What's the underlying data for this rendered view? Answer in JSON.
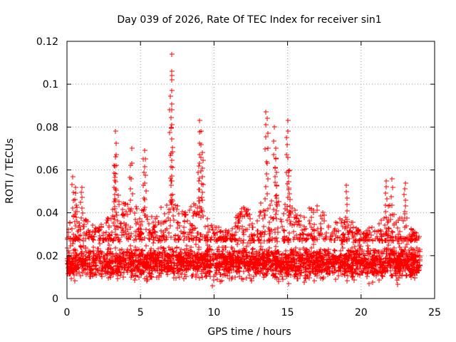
{
  "chart_data": {
    "type": "scatter",
    "title": "Day 039 of 2026, Rate Of TEC Index for receiver sin1",
    "xlabel": "GPS time / hours",
    "ylabel": "ROTI / TECUs",
    "xlim": [
      0,
      25
    ],
    "ylim": [
      0,
      0.12
    ],
    "x_ticks": [
      0,
      5,
      10,
      15,
      20,
      25
    ],
    "x_tick_labels": [
      "0",
      "5",
      "10",
      "15",
      "20",
      "25"
    ],
    "y_ticks": [
      0,
      0.02,
      0.04,
      0.06,
      0.08,
      0.1,
      0.12
    ],
    "y_tick_labels": [
      "0",
      "0.02",
      "0.04",
      "0.06",
      "0.08",
      "0.1",
      "0.12"
    ],
    "grid": true,
    "marker": "+",
    "color": "#ff0000",
    "series": [
      {
        "name": "ROTI",
        "baseline_band": [
          0.007,
          0.027
        ],
        "x_range": [
          0,
          24
        ],
        "spikes": [
          {
            "x": 0.4,
            "y": 0.057
          },
          {
            "x": 0.6,
            "y": 0.052
          },
          {
            "x": 1.0,
            "y": 0.052
          },
          {
            "x": 3.3,
            "y": 0.078
          },
          {
            "x": 3.3,
            "y": 0.066
          },
          {
            "x": 3.2,
            "y": 0.062
          },
          {
            "x": 4.4,
            "y": 0.07
          },
          {
            "x": 4.3,
            "y": 0.062
          },
          {
            "x": 5.3,
            "y": 0.069
          },
          {
            "x": 5.2,
            "y": 0.065
          },
          {
            "x": 7.1,
            "y": 0.114
          },
          {
            "x": 7.1,
            "y": 0.106
          },
          {
            "x": 7.1,
            "y": 0.102
          },
          {
            "x": 7.0,
            "y": 0.088
          },
          {
            "x": 7.1,
            "y": 0.081
          },
          {
            "x": 9.0,
            "y": 0.083
          },
          {
            "x": 9.1,
            "y": 0.078
          },
          {
            "x": 9.2,
            "y": 0.068
          },
          {
            "x": 9.0,
            "y": 0.063
          },
          {
            "x": 13.5,
            "y": 0.087
          },
          {
            "x": 13.6,
            "y": 0.084
          },
          {
            "x": 14.1,
            "y": 0.08
          },
          {
            "x": 14.2,
            "y": 0.07
          },
          {
            "x": 14.2,
            "y": 0.065
          },
          {
            "x": 15.0,
            "y": 0.083
          },
          {
            "x": 15.0,
            "y": 0.078
          },
          {
            "x": 15.1,
            "y": 0.06
          },
          {
            "x": 19.0,
            "y": 0.053
          },
          {
            "x": 21.7,
            "y": 0.055
          },
          {
            "x": 22.1,
            "y": 0.056
          },
          {
            "x": 23.0,
            "y": 0.054
          }
        ],
        "envelope": [
          {
            "x": 0.0,
            "y": 0.03
          },
          {
            "x": 0.5,
            "y": 0.045
          },
          {
            "x": 1.0,
            "y": 0.04
          },
          {
            "x": 2.0,
            "y": 0.033
          },
          {
            "x": 3.0,
            "y": 0.04
          },
          {
            "x": 3.5,
            "y": 0.05
          },
          {
            "x": 4.0,
            "y": 0.045
          },
          {
            "x": 5.0,
            "y": 0.043
          },
          {
            "x": 6.0,
            "y": 0.038
          },
          {
            "x": 7.0,
            "y": 0.05
          },
          {
            "x": 8.0,
            "y": 0.04
          },
          {
            "x": 9.0,
            "y": 0.048
          },
          {
            "x": 10.0,
            "y": 0.034
          },
          {
            "x": 11.0,
            "y": 0.032
          },
          {
            "x": 12.0,
            "y": 0.045
          },
          {
            "x": 13.0,
            "y": 0.046
          },
          {
            "x": 14.0,
            "y": 0.048
          },
          {
            "x": 15.0,
            "y": 0.045
          },
          {
            "x": 16.0,
            "y": 0.04
          },
          {
            "x": 17.0,
            "y": 0.045
          },
          {
            "x": 18.0,
            "y": 0.035
          },
          {
            "x": 19.0,
            "y": 0.04
          },
          {
            "x": 20.0,
            "y": 0.03
          },
          {
            "x": 21.0,
            "y": 0.035
          },
          {
            "x": 22.0,
            "y": 0.045
          },
          {
            "x": 23.0,
            "y": 0.04
          },
          {
            "x": 24.0,
            "y": 0.03
          }
        ]
      }
    ]
  }
}
